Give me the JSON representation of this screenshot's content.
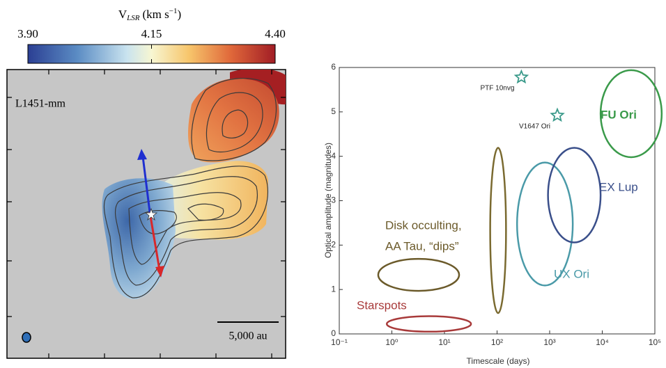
{
  "map": {
    "colorbar_label": {
      "symbol": "V",
      "subscript": "LSR",
      "unit": "(km s",
      "unit_exponent": "−1",
      "unit_close": ")"
    },
    "colorbar_lim": [
      3.9,
      4.4
    ],
    "colorbar_ticks": [
      {
        "value": 3.9,
        "label": "3.90"
      },
      {
        "value": 4.15,
        "label": "4.15"
      },
      {
        "value": 4.4,
        "label": "4.40"
      }
    ],
    "source": "L1451-mm",
    "scale_bar": "5,000 au"
  },
  "chart_data": {
    "type": "scatter",
    "xlabel": "Timescale (days)",
    "ylabel": "Optical amplitude (magnitudes)",
    "xscale": "log",
    "xlim": [
      0.1,
      100000
    ],
    "ylim": [
      0,
      6
    ],
    "xticks": [
      {
        "value": 0.1,
        "label": "10⁻¹"
      },
      {
        "value": 1,
        "label": "10⁰"
      },
      {
        "value": 10,
        "label": "10¹"
      },
      {
        "value": 100,
        "label": "10²"
      },
      {
        "value": 1000,
        "label": "10³"
      },
      {
        "value": 10000,
        "label": "10⁴"
      },
      {
        "value": 100000,
        "label": "10⁵"
      }
    ],
    "yticks": [
      0,
      1,
      2,
      3,
      4,
      5,
      6
    ],
    "series": [
      {
        "name": "PTF 10nvg",
        "color": "#3a9a8a",
        "x": [
          290
        ],
        "values": [
          5.78
        ]
      },
      {
        "name": "V1647 Ori",
        "color": "#3a9a8a",
        "x": [
          1400
        ],
        "values": [
          4.92
        ]
      }
    ],
    "regions": [
      {
        "name": "Starspots",
        "color": "#a83a3a",
        "xrange": [
          0.8,
          32
        ],
        "yrange": [
          0.05,
          0.4
        ]
      },
      {
        "name": [
          "Disk occulting,",
          "AA Tau, “dips”"
        ],
        "color": "#6b5a2a",
        "xrange": [
          0.55,
          19
        ],
        "yrange": [
          0.97,
          1.69
        ]
      },
      {
        "color": "#7a6a30",
        "xrange": [
          74,
          148
        ],
        "yrange": [
          0.47,
          4.19
        ]
      },
      {
        "name": "UX Ori",
        "color": "#4a9aa8",
        "xrange": [
          240,
          2750
        ],
        "yrange": [
          1.09,
          3.86
        ]
      },
      {
        "name": "EX Lup",
        "color": "#3a4f8a",
        "xrange": [
          930,
          9300
        ],
        "yrange": [
          2.06,
          4.19
        ]
      },
      {
        "name": "FU Ori",
        "color": "#3a9a4a",
        "xrange": [
          9300,
          135000
        ],
        "yrange": [
          3.98,
          5.94
        ]
      }
    ]
  }
}
